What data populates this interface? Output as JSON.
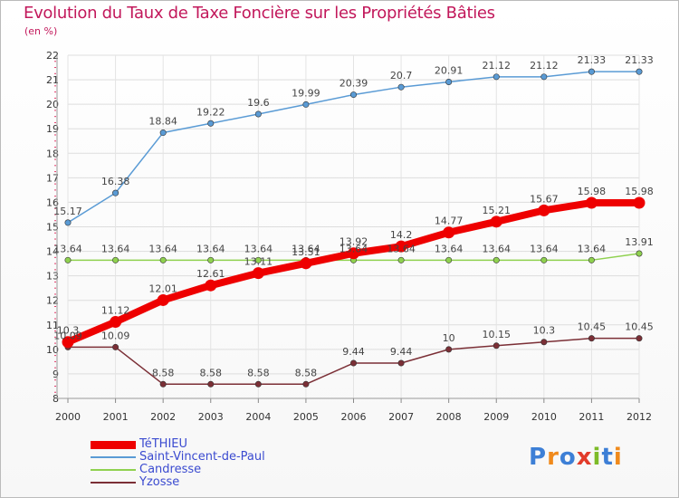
{
  "title": "Evolution du Taux de Taxe Foncière sur les Propriétés Bâties",
  "unit_label": "(en %)",
  "logo": {
    "text": "Proxiti",
    "letter_colors": [
      "#3d7fd6",
      "#f08a1c",
      "#3d7fd6",
      "#e23b2a",
      "#7dbb28",
      "#3d7fd6",
      "#f08a1c"
    ]
  },
  "chart_data": {
    "type": "line",
    "x": [
      "2000",
      "2001",
      "2002",
      "2003",
      "2004",
      "2005",
      "2006",
      "2007",
      "2008",
      "2009",
      "2010",
      "2011",
      "2012"
    ],
    "ylim": [
      8,
      22
    ],
    "yticks": [
      "8",
      "9",
      "10",
      "11",
      "12",
      "13",
      "14",
      "15",
      "16",
      "17",
      "18",
      "19",
      "20",
      "21",
      "22"
    ],
    "grid": true,
    "legend_position": "bottom-left",
    "series": [
      {
        "name": "TéTHIEU",
        "color": "#ee0000",
        "emphasis": true,
        "values": [
          10.3,
          11.12,
          12.01,
          12.61,
          13.11,
          13.51,
          13.92,
          14.2,
          14.77,
          15.21,
          15.67,
          15.98,
          15.98
        ],
        "labels": [
          "10.3",
          "11.12",
          "12.01",
          "12.61",
          "13.11",
          "13.51",
          "13.92",
          "14.2",
          "14.77",
          "15.21",
          "15.67",
          "15.98",
          "15.98"
        ]
      },
      {
        "name": "Saint-Vincent-de-Paul",
        "color": "#5a9bd5",
        "emphasis": false,
        "values": [
          15.17,
          16.38,
          18.84,
          19.22,
          19.6,
          19.99,
          20.39,
          20.7,
          20.91,
          21.12,
          21.12,
          21.33,
          21.33
        ],
        "labels": [
          "15.17",
          "16.38",
          "18.84",
          "19.22",
          "19.6",
          "19.99",
          "20.39",
          "20.7",
          "20.91",
          "21.12",
          "21.12",
          "21.33",
          "21.33"
        ]
      },
      {
        "name": "Candresse",
        "color": "#8fd14f",
        "emphasis": false,
        "values": [
          13.64,
          13.64,
          13.64,
          13.64,
          13.64,
          13.64,
          13.64,
          13.64,
          13.64,
          13.64,
          13.64,
          13.64,
          13.91
        ],
        "labels": [
          "13.64",
          "13.64",
          "13.64",
          "13.64",
          "13.64",
          "13.64",
          "13.64",
          "13.64",
          "13.64",
          "13.64",
          "13.64",
          "13.64",
          "13.91"
        ]
      },
      {
        "name": "Yzosse",
        "color": "#7b2f36",
        "emphasis": false,
        "values": [
          10.09,
          10.09,
          8.58,
          8.58,
          8.58,
          8.58,
          9.44,
          9.44,
          10,
          10.15,
          10.3,
          10.45,
          10.45
        ],
        "labels": [
          "10.09",
          "10.09",
          "8.58",
          "8.58",
          "8.58",
          "8.58",
          "9.44",
          "9.44",
          "10",
          "10.15",
          "10.3",
          "10.45",
          "10.45"
        ]
      }
    ]
  }
}
